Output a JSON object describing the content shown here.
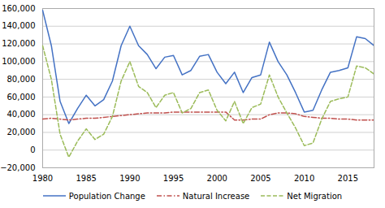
{
  "chart_data": {
    "type": "line",
    "x": [
      1980,
      1981,
      1982,
      1983,
      1984,
      1985,
      1986,
      1987,
      1988,
      1989,
      1990,
      1991,
      1992,
      1993,
      1994,
      1995,
      1996,
      1997,
      1998,
      1999,
      2000,
      2001,
      2002,
      2003,
      2004,
      2005,
      2006,
      2007,
      2008,
      2009,
      2010,
      2011,
      2012,
      2013,
      2014,
      2015,
      2016,
      2017,
      2018
    ],
    "xlim": [
      1980,
      2018
    ],
    "xticks": [
      1980,
      1985,
      1990,
      1995,
      2000,
      2005,
      2010,
      2015
    ],
    "ylim": [
      -20000,
      160000
    ],
    "yticks": [
      {
        "value": -20000,
        "label": "−20,000"
      },
      0,
      {
        "value": 20000,
        "label": "20,000"
      },
      {
        "value": 40000,
        "label": "40,000"
      },
      {
        "value": 60000,
        "label": "60,000"
      },
      {
        "value": 80000,
        "label": "80,000"
      },
      {
        "value": 100000,
        "label": "100,000"
      },
      {
        "value": 120000,
        "label": "120,000"
      },
      {
        "value": 140000,
        "label": "140,000"
      },
      {
        "value": 160000,
        "label": "160,000"
      }
    ],
    "grid": true,
    "legend": "bottom",
    "series": [
      {
        "name": "Population Change",
        "color": "#4472C4",
        "line_style": "solid",
        "values": [
          158000,
          118000,
          55000,
          30000,
          47000,
          62000,
          50000,
          57000,
          78000,
          118000,
          140000,
          118000,
          108000,
          92000,
          105000,
          107000,
          85000,
          90000,
          106000,
          108000,
          88000,
          75000,
          88000,
          65000,
          82000,
          85000,
          122000,
          100000,
          85000,
          65000,
          43000,
          45000,
          68000,
          88000,
          90000,
          93000,
          128000,
          126000,
          118000
        ]
      },
      {
        "name": "Natural Increase",
        "color": "#C0504D",
        "line_style": "dashdot",
        "values": [
          35000,
          36000,
          35000,
          34000,
          35000,
          36000,
          36000,
          37000,
          38000,
          39000,
          40000,
          41000,
          42000,
          42000,
          42000,
          43000,
          43000,
          43000,
          43000,
          43000,
          43000,
          43000,
          34000,
          34000,
          35000,
          35000,
          40000,
          42000,
          42000,
          41000,
          38000,
          37000,
          36000,
          36000,
          35000,
          35000,
          34000,
          34000,
          34000
        ]
      },
      {
        "name": "Net Migration",
        "color": "#9BBB59",
        "line_style": "dashed",
        "values": [
          118000,
          80000,
          18000,
          -8000,
          10000,
          24000,
          12000,
          18000,
          38000,
          78000,
          100000,
          72000,
          65000,
          48000,
          62000,
          65000,
          42000,
          47000,
          65000,
          68000,
          45000,
          33000,
          55000,
          30000,
          48000,
          52000,
          85000,
          60000,
          42000,
          25000,
          5000,
          8000,
          35000,
          55000,
          58000,
          60000,
          95000,
          93000,
          86000
        ]
      }
    ]
  }
}
